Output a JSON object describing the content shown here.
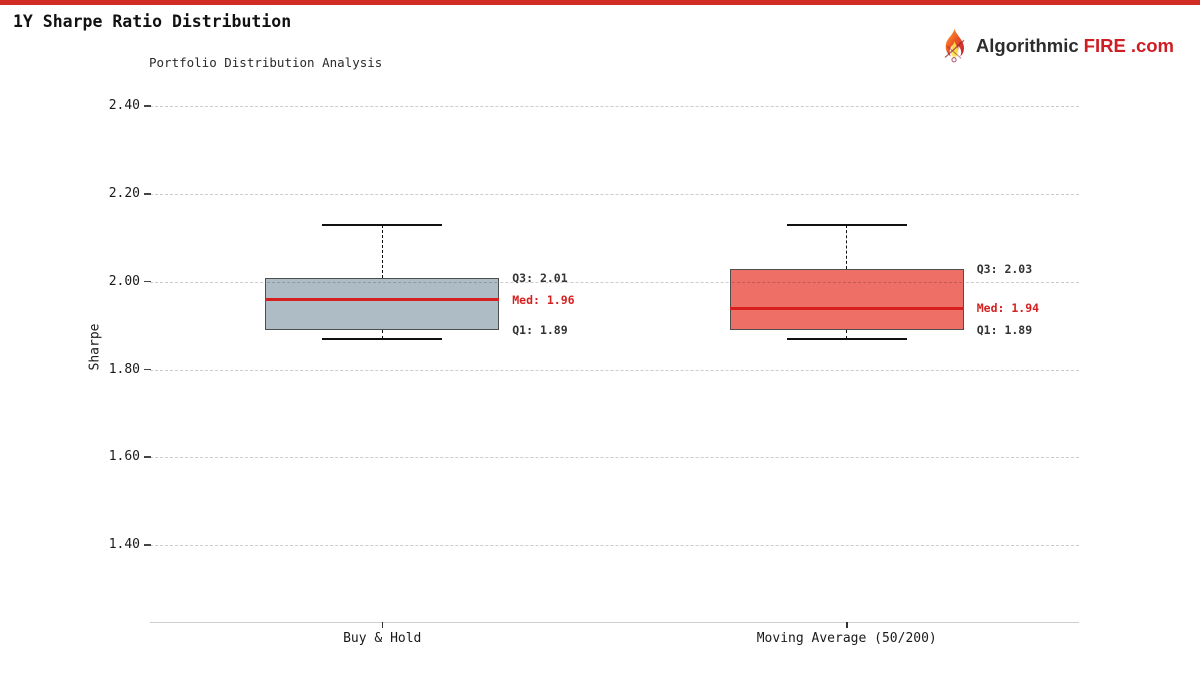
{
  "page": {
    "title": "1Y Sharpe Ratio Distribution",
    "accent_color": "#d02c24"
  },
  "logo": {
    "icon": "flame-icon",
    "text_primary": "Algorithmic",
    "text_accent": "FIRE",
    "text_suffix": ".com",
    "primary_color": "#2d2d2d",
    "accent_color": "#cf1d23"
  },
  "chart_data": {
    "type": "boxplot",
    "title": "Portfolio Distribution Analysis",
    "ylabel": "Sharpe",
    "ylim": [
      1.225,
      2.449
    ],
    "yticks": [
      1.4,
      1.6,
      1.8,
      2.0,
      2.2,
      2.4
    ],
    "grid": "dashed-horizontal",
    "grid_color": "#cccccc",
    "axis_line_color": "#cfcfcf",
    "median_color": "#d62020",
    "annotation_color": "#333333",
    "whisker_color": "#111111",
    "box_edge_color": "#4e4e4e",
    "categories": [
      "Buy & Hold",
      "Moving Average (50/200)"
    ],
    "series": [
      {
        "name": "Buy & Hold",
        "whisker_low": 1.87,
        "q1": 1.89,
        "median": 1.96,
        "q3": 2.01,
        "whisker_high": 2.13,
        "box_color": "#aebdc5",
        "labels": {
          "q3": "Q3: 2.01",
          "median": "Med: 1.96",
          "q1": "Q1: 1.89"
        }
      },
      {
        "name": "Moving Average (50/200)",
        "whisker_low": 1.87,
        "q1": 1.89,
        "median": 1.94,
        "q3": 2.03,
        "whisker_high": 2.13,
        "box_color": "#ee6f66",
        "labels": {
          "q3": "Q3: 2.03",
          "median": "Med: 1.94",
          "q1": "Q1: 1.89"
        }
      }
    ]
  }
}
